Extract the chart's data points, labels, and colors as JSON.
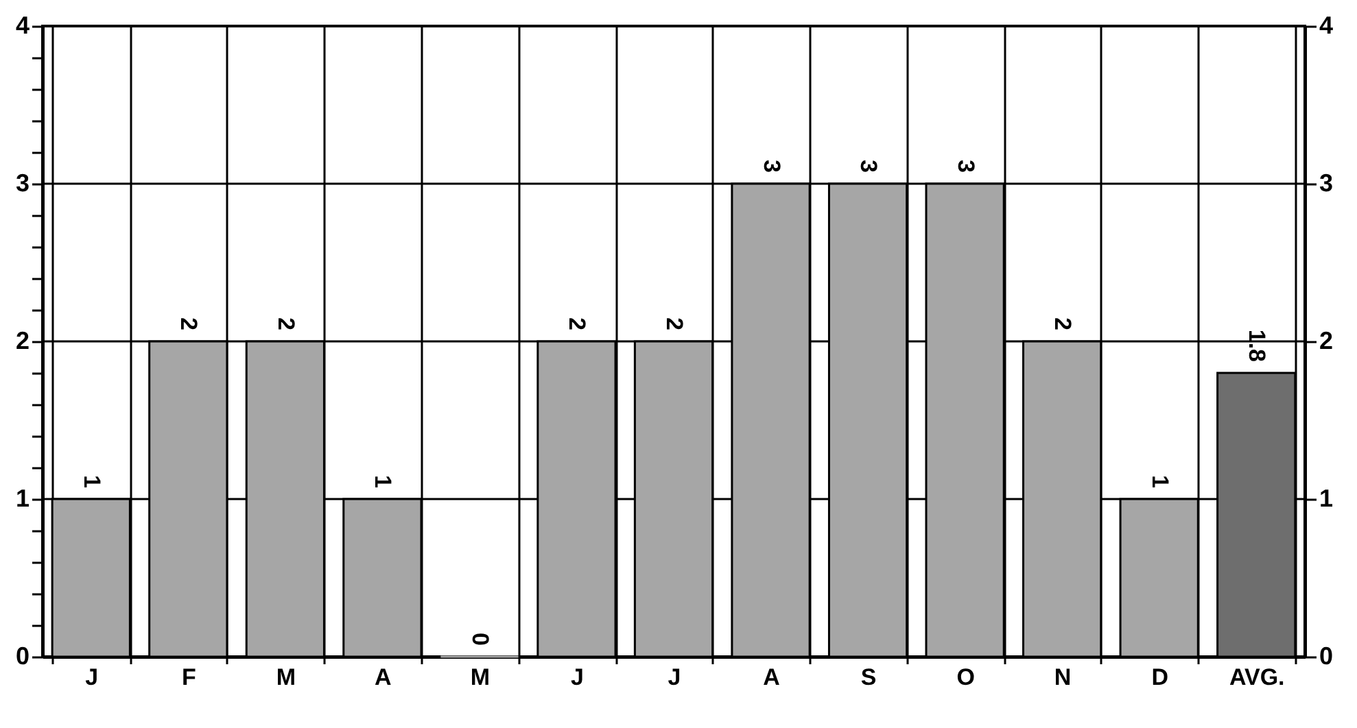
{
  "chart_data": {
    "type": "bar",
    "categories": [
      "J",
      "F",
      "M",
      "A",
      "M",
      "J",
      "J",
      "A",
      "S",
      "O",
      "N",
      "D",
      "AVG."
    ],
    "values": [
      1,
      2,
      2,
      1,
      0,
      2,
      2,
      3,
      3,
      3,
      2,
      1,
      1.8
    ],
    "colors": [
      "#a6a6a6",
      "#a6a6a6",
      "#a6a6a6",
      "#a6a6a6",
      "#a6a6a6",
      "#a6a6a6",
      "#a6a6a6",
      "#a6a6a6",
      "#a6a6a6",
      "#a6a6a6",
      "#a6a6a6",
      "#a6a6a6",
      "#6e6e6e"
    ],
    "ylim": [
      0,
      4
    ],
    "yticks": [
      0,
      {
        "value": 0.2,
        "label": null
      },
      {
        "value": 0.4,
        "label": null
      },
      {
        "value": 0.6,
        "label": null
      },
      {
        "value": 0.8,
        "label": null
      },
      1,
      {
        "value": 1.2,
        "label": null
      },
      {
        "value": 1.4,
        "label": null
      },
      {
        "value": 1.6,
        "label": null
      },
      {
        "value": 1.8,
        "label": null
      },
      2,
      {
        "value": 2.2,
        "label": null
      },
      {
        "value": 2.4,
        "label": null
      },
      {
        "value": 2.6,
        "label": null
      },
      {
        "value": 2.8,
        "label": null
      },
      3,
      {
        "value": 3.2,
        "label": null
      },
      {
        "value": 3.4,
        "label": null
      },
      {
        "value": 3.6,
        "label": null
      },
      {
        "value": 3.8,
        "label": null
      },
      4
    ],
    "y2lim": [
      0,
      4
    ],
    "y2ticks": [
      0,
      1,
      2,
      3,
      4
    ],
    "grid": true,
    "data_labels": true
  }
}
